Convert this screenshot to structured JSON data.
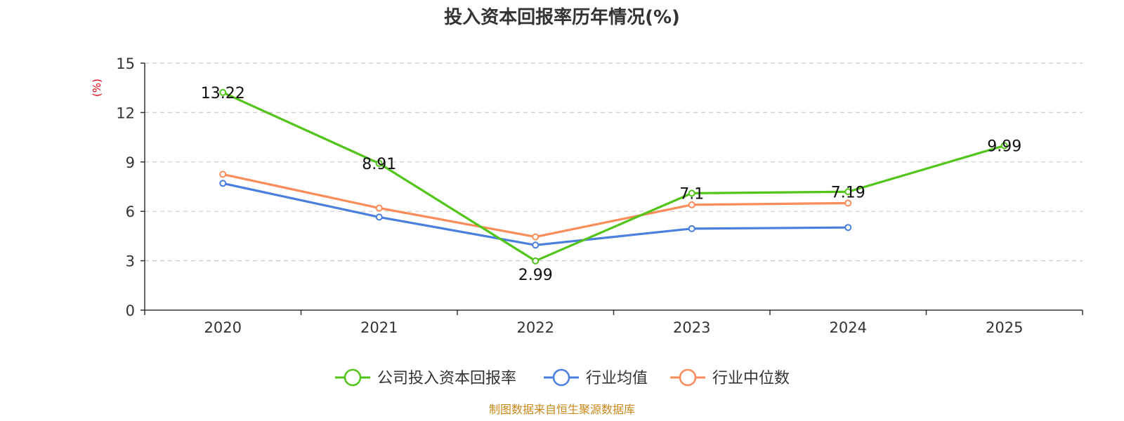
{
  "chart_data": {
    "type": "line",
    "title": "投入资本回报率历年情况(%)",
    "ylabel": "(%)",
    "xlabel": "",
    "categories": [
      "2020",
      "2021",
      "2022",
      "2023",
      "2024",
      "2025"
    ],
    "ylim": [
      0,
      15
    ],
    "yticks": [
      0,
      3,
      6,
      9,
      12,
      15
    ],
    "grid": true,
    "legend_position": "bottom-center",
    "series": [
      {
        "name": "公司投入资本回报率",
        "color": "#52c41a",
        "values": [
          13.22,
          8.91,
          2.99,
          7.1,
          7.19,
          9.99
        ],
        "labels": [
          "13.22",
          "8.91",
          "2.99",
          "7.1",
          "7.19",
          "9.99"
        ]
      },
      {
        "name": "行业均值",
        "color": "#4a7fe0",
        "values": [
          7.7,
          5.65,
          3.95,
          4.95,
          5.02,
          null
        ]
      },
      {
        "name": "行业中位数",
        "color": "#fa8c5a",
        "values": [
          8.25,
          6.2,
          4.45,
          6.4,
          6.5,
          null
        ]
      }
    ]
  },
  "source": "制图数据来自恒生聚源数据库"
}
